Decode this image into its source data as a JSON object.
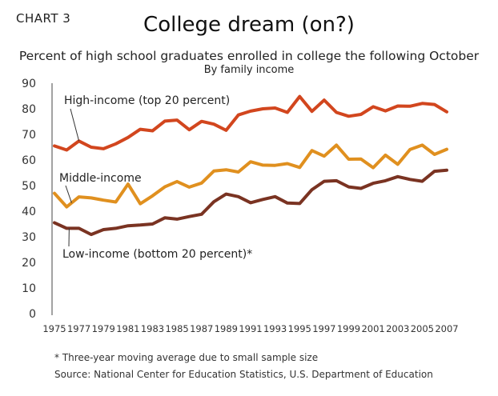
{
  "header": {
    "chart_label": "CHART 3",
    "title": "College dream (on?)",
    "subtitle": "Percent of high school graduates enrolled in college the following October",
    "subtitle2": "By family income"
  },
  "footer": {
    "footnote": "* Three-year moving average due to small sample size",
    "source": "Source: National Center for Education Statistics, U.S. Department of Education"
  },
  "chart_data": {
    "type": "line",
    "title": "College dream (on?)",
    "subtitle": "Percent of high school graduates enrolled in college the following October",
    "xlabel": "",
    "ylabel": "",
    "ylim": [
      0,
      90
    ],
    "yticks": [
      0,
      10,
      20,
      30,
      40,
      50,
      60,
      70,
      80,
      90
    ],
    "xlim": [
      1975,
      2007
    ],
    "xtick_labels": [
      "1975",
      "1977",
      "1979",
      "1981",
      "1983",
      "1985",
      "1987",
      "1989",
      "1991",
      "1993",
      "1995",
      "1997",
      "1999",
      "2001",
      "2003",
      "2005",
      "2007"
    ],
    "grid": false,
    "legend": "inline labels",
    "x": [
      1975,
      1976,
      1977,
      1978,
      1979,
      1980,
      1981,
      1982,
      1983,
      1984,
      1985,
      1986,
      1987,
      1988,
      1989,
      1990,
      1991,
      1992,
      1993,
      1994,
      1995,
      1996,
      1997,
      1998,
      1999,
      2000,
      2001,
      2002,
      2003,
      2004,
      2005,
      2006,
      2007
    ],
    "series": [
      {
        "name": "High-income (top 20 percent)",
        "color": "#d2461e",
        "values": [
          65.5,
          63.9,
          67.4,
          65.0,
          64.4,
          66.3,
          68.8,
          72.0,
          71.4,
          75.2,
          75.6,
          71.8,
          75.1,
          74.0,
          71.6,
          77.6,
          79.1,
          80.0,
          80.3,
          78.6,
          84.8,
          79.0,
          83.4,
          78.6,
          77.1,
          77.8,
          80.8,
          79.2,
          81.1,
          81.0,
          82.1,
          81.7,
          78.8
        ]
      },
      {
        "name": "Middle-income",
        "color": "#e0901f",
        "values": [
          47.0,
          41.7,
          45.6,
          45.2,
          44.3,
          43.6,
          50.6,
          42.9,
          46.0,
          49.5,
          51.6,
          49.4,
          51.0,
          55.7,
          56.2,
          55.3,
          59.3,
          58.0,
          57.9,
          58.6,
          57.1,
          63.7,
          61.5,
          65.8,
          60.3,
          60.4,
          57.0,
          61.9,
          58.3,
          64.1,
          65.8,
          62.2,
          64.2
        ]
      },
      {
        "name": "Low-income (bottom 20 percent)*",
        "color": "#7a3322",
        "values": [
          35.5,
          33.3,
          33.3,
          30.9,
          32.8,
          33.3,
          34.3,
          34.6,
          35.0,
          37.4,
          36.9,
          37.9,
          38.8,
          43.7,
          46.7,
          45.7,
          43.3,
          44.6,
          45.7,
          43.2,
          43.0,
          48.4,
          51.7,
          51.9,
          49.5,
          48.9,
          50.9,
          51.9,
          53.5,
          52.4,
          51.7,
          55.6,
          56.0
        ]
      }
    ]
  }
}
